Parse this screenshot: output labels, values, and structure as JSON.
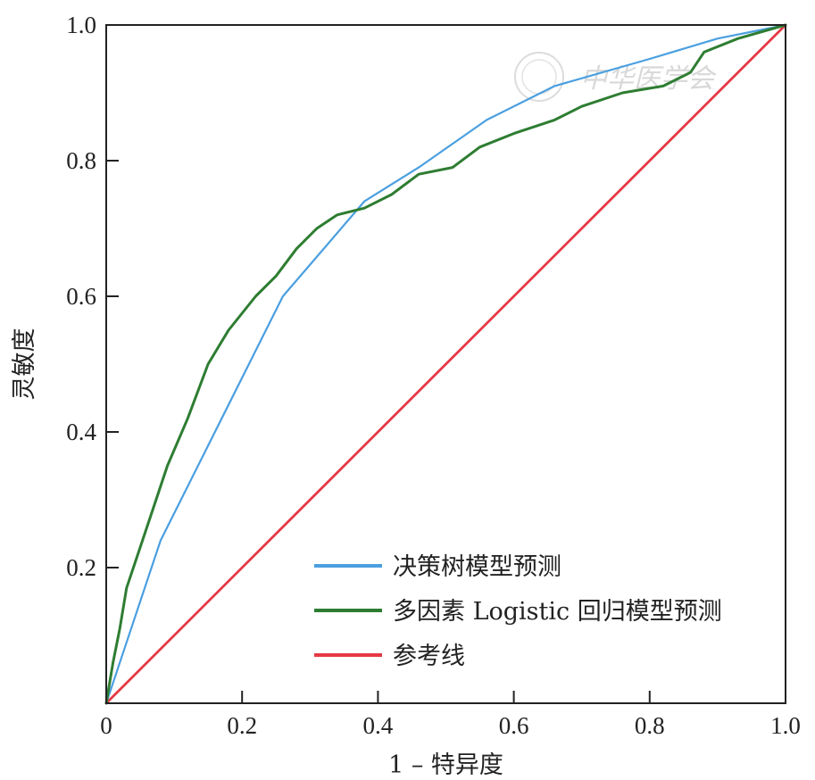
{
  "chart_data": {
    "type": "line",
    "title": "",
    "xlabel": "1 – 特异度",
    "ylabel": "灵敏度",
    "xlim": [
      0,
      1
    ],
    "ylim": [
      0,
      1
    ],
    "x_ticks": [
      "0",
      "0.2",
      "0.4",
      "0.6",
      "0.8",
      "1.0"
    ],
    "y_ticks": [
      "0.2",
      "0.4",
      "0.6",
      "0.8",
      "1.0"
    ],
    "grid": false,
    "legend_position": "bottom-right",
    "series": [
      {
        "name": "决策树模型预测",
        "color": "#4a9fe0",
        "points": [
          [
            0,
            0
          ],
          [
            0.08,
            0.24
          ],
          [
            0.26,
            0.6
          ],
          [
            0.38,
            0.74
          ],
          [
            0.46,
            0.79
          ],
          [
            0.56,
            0.86
          ],
          [
            0.66,
            0.91
          ],
          [
            0.8,
            0.95
          ],
          [
            0.9,
            0.98
          ],
          [
            1.0,
            1.0
          ]
        ]
      },
      {
        "name": "多因素 Logistic 回归模型预测",
        "color": "#2e7d32",
        "points": [
          [
            0,
            0
          ],
          [
            0.01,
            0.06
          ],
          [
            0.02,
            0.11
          ],
          [
            0.03,
            0.17
          ],
          [
            0.05,
            0.23
          ],
          [
            0.07,
            0.29
          ],
          [
            0.09,
            0.35
          ],
          [
            0.12,
            0.42
          ],
          [
            0.15,
            0.5
          ],
          [
            0.18,
            0.55
          ],
          [
            0.22,
            0.6
          ],
          [
            0.25,
            0.63
          ],
          [
            0.28,
            0.67
          ],
          [
            0.31,
            0.7
          ],
          [
            0.34,
            0.72
          ],
          [
            0.38,
            0.73
          ],
          [
            0.42,
            0.75
          ],
          [
            0.46,
            0.78
          ],
          [
            0.51,
            0.79
          ],
          [
            0.55,
            0.82
          ],
          [
            0.6,
            0.84
          ],
          [
            0.66,
            0.86
          ],
          [
            0.7,
            0.88
          ],
          [
            0.76,
            0.9
          ],
          [
            0.82,
            0.91
          ],
          [
            0.86,
            0.93
          ],
          [
            0.88,
            0.96
          ],
          [
            0.93,
            0.98
          ],
          [
            1.0,
            1.0
          ]
        ]
      },
      {
        "name": "参考线",
        "color": "#e53945",
        "points": [
          [
            0,
            0
          ],
          [
            1.0,
            1.0
          ]
        ]
      }
    ]
  },
  "watermark": {
    "text": "中华医学会"
  }
}
